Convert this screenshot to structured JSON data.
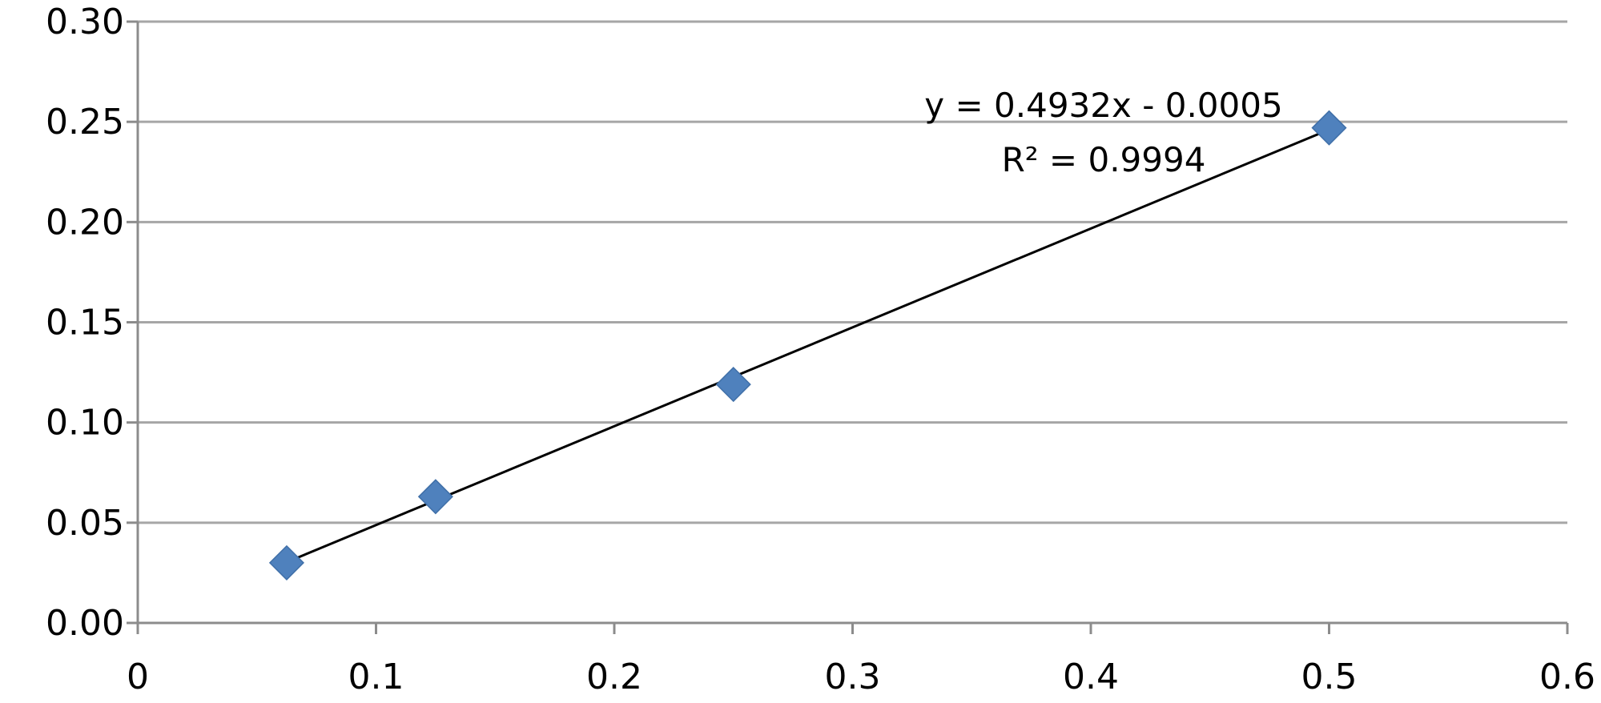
{
  "chart_data": {
    "type": "scatter",
    "title": "",
    "xlabel": "",
    "ylabel": "",
    "xlim": [
      0,
      0.6
    ],
    "ylim": [
      0,
      0.3
    ],
    "x_ticks": [
      "0",
      "0.1",
      "0.2",
      "0.3",
      "0.4",
      "0.5",
      "0.6"
    ],
    "y_ticks": [
      "0.00",
      "0.05",
      "0.10",
      "0.15",
      "0.20",
      "0.25",
      "0.30"
    ],
    "grid": "horizontal",
    "series": [
      {
        "marker": "diamond",
        "color": "#4f81bd",
        "points": [
          {
            "x": 0.0625,
            "y": 0.03
          },
          {
            "x": 0.125,
            "y": 0.063
          },
          {
            "x": 0.25,
            "y": 0.119
          },
          {
            "x": 0.5,
            "y": 0.247
          }
        ]
      }
    ],
    "trendline": {
      "type": "linear",
      "slope": 0.4932,
      "intercept": -0.0005,
      "x_range": [
        0.0625,
        0.5
      ],
      "color": "#000000",
      "equation_label": "y = 0.4932x - 0.0005",
      "r2_label": "R² = 0.9994"
    }
  }
}
